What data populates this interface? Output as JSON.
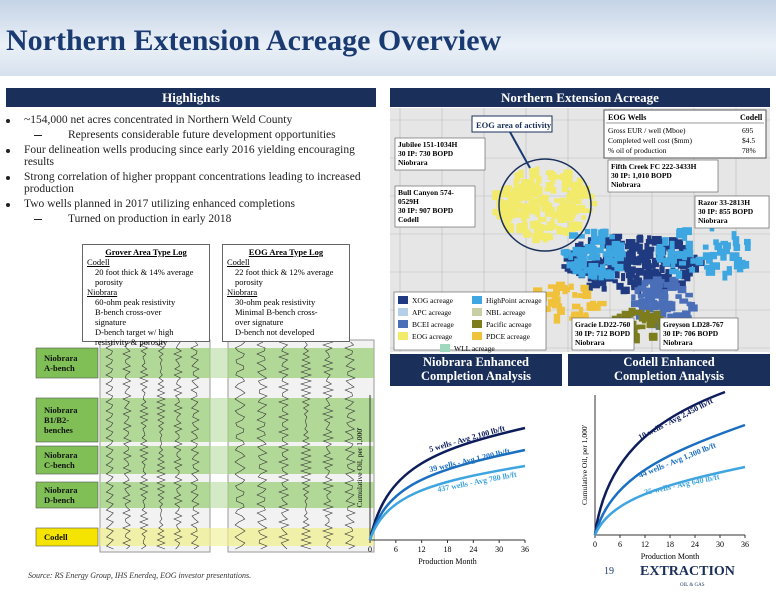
{
  "header": {
    "title": "Northern Extension Acreage Overview"
  },
  "highlights": {
    "title": "Highlights",
    "bullets": [
      {
        "text": "~154,000 net acres concentrated in Northern Weld County",
        "sub": [
          "Represents considerable future development opportunities"
        ]
      },
      {
        "text": "Four delineation wells producing since early 2016 yielding encouraging results",
        "sub": []
      },
      {
        "text": "Strong correlation of higher proppant concentrations leading to increased production",
        "sub": []
      },
      {
        "text": "Two wells planned in 2017 utilizing enhanced completions",
        "sub": [
          "Turned on production in early 2018"
        ]
      }
    ]
  },
  "type_logs": [
    {
      "title": "Grover Area Type Log",
      "lines": [
        "Codell",
        "20 foot thick & 14% average",
        "porosity",
        "Niobrara",
        "60-ohm peak resistivity",
        "B-bench cross-over",
        "signature",
        "D-bench target w/ high",
        "resistivity & porosity"
      ]
    },
    {
      "title": "EOG Area Type Log",
      "lines": [
        "Codell",
        "22 foot thick & 12% average",
        "porosity",
        "Niobrara",
        "30-ohm peak resistivity",
        "Minimal B-bench cross-",
        "over signature",
        "D-bench not developed"
      ]
    }
  ],
  "log_labels": [
    {
      "lines": [
        "Niobrara",
        "A-bench"
      ]
    },
    {
      "lines": [
        "Niobrara",
        "B1/B2-",
        "benches"
      ]
    },
    {
      "lines": [
        "Niobrara",
        "C-bench"
      ]
    },
    {
      "lines": [
        "Niobrara",
        "D-bench"
      ]
    },
    {
      "lines": [
        "Codell"
      ]
    }
  ],
  "map": {
    "title": "Northern Extension Acreage",
    "activity": "EOG area of activity",
    "callouts": [
      {
        "lines": [
          "Jubilee 151-1034H",
          "30 IP: 730 BOPD",
          "Niobrara"
        ]
      },
      {
        "lines": [
          "Bull Canyon 574-",
          "0529H",
          "30 IP: 907 BOPD",
          "Codell"
        ]
      },
      {
        "lines": [
          "Fifth Creek FC 222-3433H",
          "30 IP: 1,010 BOPD",
          "Niobrara"
        ]
      },
      {
        "lines": [
          "Razor 33-2813H",
          "30 IP: 855 BOPD",
          "Niobrara"
        ]
      },
      {
        "lines": [
          "Gracie LD22-760",
          "30 IP: 712 BOPD",
          "Niobrara"
        ]
      },
      {
        "lines": [
          "Greyson LD28-767",
          "30 IP: 706 BOPD",
          "Niobrara"
        ]
      }
    ],
    "table": {
      "headers": [
        "EOG Wells",
        "Codell"
      ],
      "rows": [
        [
          "Gross EUR / well (Mboe)",
          "695"
        ],
        [
          "Completed well cost ($mm)",
          "$4.5"
        ],
        [
          "% oil of production",
          "78%"
        ]
      ]
    },
    "legend": [
      {
        "name": "XOG acreage",
        "color": "#1f3a80"
      },
      {
        "name": "HighPoint acreage",
        "color": "#3ea6e0"
      },
      {
        "name": "APC acreage",
        "color": "#b4cfe8"
      },
      {
        "name": "NBL acreage",
        "color": "#c9cfa4"
      },
      {
        "name": "BCEI acreage",
        "color": "#4a6fb8"
      },
      {
        "name": "Pacific acreage",
        "color": "#7d7d1e"
      },
      {
        "name": "EOG acreage",
        "color": "#f2ea6a"
      },
      {
        "name": "PDCE acreage",
        "color": "#f0c23c"
      },
      {
        "name": "WLL acreage",
        "color": "#9fd8bd"
      }
    ]
  },
  "charts": [
    {
      "title": [
        "Niobrara Enhanced",
        "Completion Analysis"
      ],
      "ylabel": "Cumulative Oil, per 1,000'",
      "xlabel": "Production Month",
      "xlim": [
        0,
        36
      ],
      "xticks": [
        0,
        6,
        12,
        18,
        24,
        30,
        36
      ],
      "curves": [
        "5 wells - Avg 2,100 lb/ft",
        "39 wells - Avg 1,200 lb/ft",
        "437 wells - Avg 780 lb/ft"
      ]
    },
    {
      "title": [
        "Codell Enhanced",
        "Completion Analysis"
      ],
      "ylabel": "Cumulative Oil, per 1,000'",
      "xlabel": "Production Month",
      "xlim": [
        0,
        36
      ],
      "xticks": [
        0,
        6,
        12,
        18,
        24,
        30,
        36
      ],
      "curves": [
        "10 wells - Avg 2,450 lb/ft",
        "44 wells - Avg 1,300 lb/ft",
        "35 wells - Avg 640 lb/ft"
      ]
    }
  ],
  "footer": {
    "source": "Source: RS Energy Group, IHS Enerdeq, EOG investor presentations.",
    "page": 19,
    "logo": "EXTRACTION",
    "logo_sub": "OIL & GAS"
  }
}
